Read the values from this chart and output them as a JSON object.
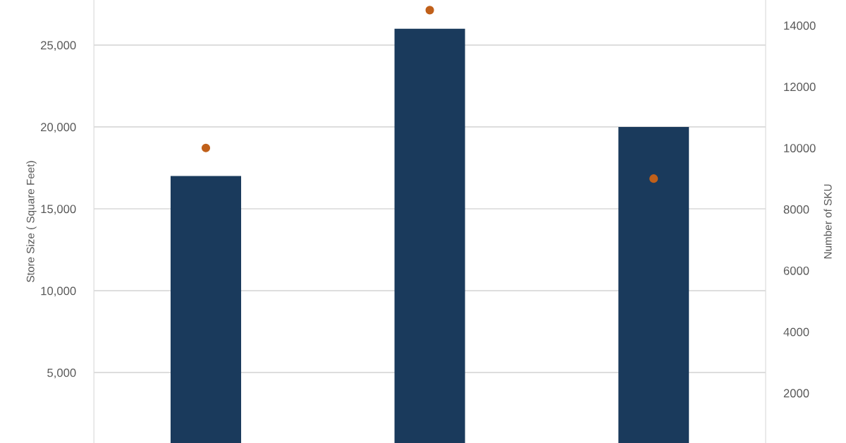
{
  "chart_data": {
    "type": "bar",
    "categories": [
      null,
      null,
      null
    ],
    "series": [
      {
        "color": "#1a3a5c",
        "values": [
          17000,
          26000,
          20000
        ]
      },
      {
        "type": "scatter",
        "axis": "y2",
        "color": "#c0601a",
        "values": [
          10000,
          14500,
          9000
        ]
      }
    ],
    "ylabel": "Store Size ( Square Feet)",
    "y2label": "Number of SKU",
    "ylim": [
      700,
      27750
    ],
    "yticks": [
      {
        "value": 5000,
        "label": "5,000"
      },
      {
        "value": 10000,
        "label": "10,000"
      },
      {
        "value": 15000,
        "label": "15,000"
      },
      {
        "value": 20000,
        "label": "20,000"
      },
      {
        "value": 25000,
        "label": "25,000"
      }
    ],
    "y2lim": [
      370,
      14830
    ],
    "y2ticks": [
      2000,
      4000,
      6000,
      8000,
      10000,
      12000,
      14000
    ],
    "grid": "y",
    "tick_labels": "y",
    "marker": "circle"
  }
}
